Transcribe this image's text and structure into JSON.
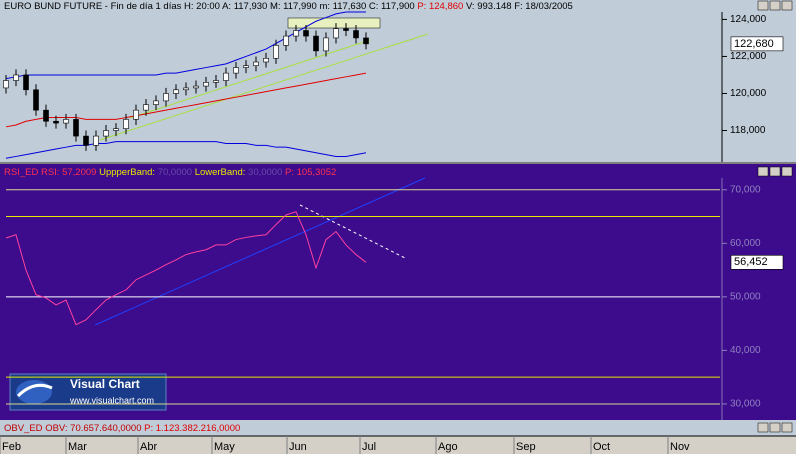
{
  "chart_data": [
    {
      "type": "candlestick",
      "title": "EURO BUND FUTURE - Fin de día 1 días",
      "info": [
        {
          "text": "H: 20:00",
          "color": "#000000"
        },
        {
          "text": "A: 117,930",
          "color": "#000000"
        },
        {
          "text": "M: 117,990",
          "color": "#000000"
        },
        {
          "text": "m: 117,630",
          "color": "#000000"
        },
        {
          "text": "C: 117,900",
          "color": "#000000"
        },
        {
          "text": "P: 124,860",
          "color": "#e00000"
        },
        {
          "text": "V: 993.148",
          "color": "#000000"
        },
        {
          "text": "F: 18/03/2005",
          "color": "#000000"
        }
      ],
      "open": [
        120.3,
        120.7,
        121.0,
        120.2,
        119.1,
        118.5,
        118.4,
        118.6,
        117.7,
        117.2,
        117.7,
        118.0,
        118.1,
        118.6,
        119.1,
        119.4,
        119.6,
        120.0,
        120.2,
        120.3,
        120.4,
        120.6,
        120.7,
        121.1,
        121.4,
        121.5,
        121.7,
        121.9,
        122.6,
        123.1,
        123.4,
        123.1,
        122.3,
        123.0,
        123.5,
        123.4,
        123.0
      ],
      "high": [
        121.0,
        121.3,
        121.3,
        120.5,
        119.4,
        118.8,
        118.9,
        118.9,
        118.0,
        118.0,
        118.3,
        118.4,
        118.9,
        119.4,
        119.7,
        119.9,
        120.3,
        120.5,
        120.6,
        120.7,
        120.9,
        121.0,
        121.4,
        121.7,
        121.8,
        122.0,
        122.2,
        122.9,
        123.4,
        123.7,
        123.7,
        123.4,
        123.3,
        123.8,
        123.8,
        123.7,
        123.3
      ],
      "low": [
        120.0,
        120.4,
        119.9,
        118.8,
        118.2,
        118.1,
        118.1,
        117.4,
        116.9,
        116.9,
        117.4,
        117.7,
        117.8,
        118.3,
        118.8,
        119.1,
        119.3,
        119.7,
        119.9,
        120.0,
        120.1,
        120.3,
        120.4,
        120.8,
        121.1,
        121.2,
        121.4,
        121.6,
        122.3,
        122.8,
        122.8,
        122.0,
        122.0,
        122.7,
        123.1,
        122.7,
        122.38
      ],
      "close": [
        120.7,
        121.0,
        120.2,
        119.1,
        118.5,
        118.4,
        118.6,
        117.7,
        117.2,
        117.7,
        118.0,
        118.1,
        118.6,
        119.1,
        119.4,
        119.6,
        120.0,
        120.2,
        120.3,
        120.4,
        120.6,
        120.7,
        121.1,
        121.4,
        121.5,
        121.7,
        121.9,
        122.6,
        123.1,
        123.4,
        123.1,
        122.3,
        123.0,
        123.5,
        123.4,
        123.0,
        122.68
      ],
      "series": [
        {
          "color": "#0000e0",
          "values": [
            120.8,
            120.9,
            121.0,
            121.0,
            121.0,
            121.0,
            121.0,
            121.0,
            121.0,
            121.0,
            121.0,
            121.0,
            121.0,
            121.0,
            121.0,
            121.0,
            121.1,
            121.1,
            121.2,
            121.3,
            121.4,
            121.5,
            121.6,
            121.8,
            122.0,
            122.2,
            122.4,
            122.7,
            123.0,
            123.3,
            123.6,
            123.9,
            124.1,
            124.3,
            124.4,
            124.4,
            124.4
          ]
        },
        {
          "color": "#0000e0",
          "values": [
            116.5,
            116.6,
            116.7,
            116.8,
            116.9,
            117.0,
            117.1,
            117.2,
            117.2,
            117.3,
            117.3,
            117.4,
            117.4,
            117.4,
            117.4,
            117.4,
            117.4,
            117.4,
            117.4,
            117.4,
            117.4,
            117.4,
            117.3,
            117.3,
            117.3,
            117.2,
            117.2,
            117.1,
            117.1,
            117.0,
            116.9,
            116.8,
            116.7,
            116.6,
            116.6,
            116.7,
            116.8
          ]
        },
        {
          "color": "#e00000",
          "values": [
            118.2,
            118.3,
            118.5,
            118.6,
            118.7,
            118.7,
            118.7,
            118.7,
            118.6,
            118.6,
            118.6,
            118.6,
            118.7,
            118.8,
            118.9,
            119.0,
            119.1,
            119.2,
            119.3,
            119.4,
            119.5,
            119.6,
            119.7,
            119.8,
            119.9,
            120.0,
            120.1,
            120.2,
            120.3,
            120.4,
            120.5,
            120.6,
            120.7,
            120.8,
            120.9,
            121.0,
            121.1
          ]
        }
      ],
      "ylim": [
        116.3,
        124.4
      ],
      "yticks": [
        {
          "value": 124,
          "label": "124,000"
        },
        {
          "value": 122,
          "label": "122,000"
        },
        {
          "value": 120,
          "label": "120,000"
        },
        {
          "value": 118,
          "label": "118,000"
        }
      ],
      "last": {
        "value": 122.68,
        "label": "122,680"
      }
    },
    {
      "type": "line",
      "title": "RSI_ED",
      "info": [
        {
          "text": "RSI: 57,2009",
          "color": "#ff3050"
        },
        {
          "text": "UppperBand:",
          "color": "#e8e800"
        },
        {
          "text": "70,0000",
          "color": "#6a4aa8"
        },
        {
          "text": "LowerBand:",
          "color": "#e8e800"
        },
        {
          "text": "30,0000",
          "color": "#6a4aa8"
        },
        {
          "text": "P: 105,3052",
          "color": "#ff3050"
        }
      ],
      "series": [
        {
          "color": "#ff40a0",
          "values": [
            61,
            61.6,
            55,
            50.4,
            49.8,
            48.5,
            49.4,
            44.8,
            45.7,
            47.6,
            49.4,
            50.4,
            51.3,
            53.2,
            54.1,
            55,
            56,
            56.9,
            57.9,
            58.4,
            58.8,
            59.7,
            59.7,
            60.7,
            61.1,
            61.4,
            61.6,
            63.5,
            65.3,
            65.9,
            61.6,
            55.4,
            60.7,
            62.2,
            59.7,
            57.9,
            56.452
          ]
        }
      ],
      "levels": [
        {
          "value": 70,
          "color": "#d8d890"
        },
        {
          "value": 65,
          "color": "#e8e800"
        },
        {
          "value": 50,
          "color": "#ffffff"
        },
        {
          "value": 35,
          "color": "#e8e800"
        },
        {
          "value": 30,
          "color": "#d8d890"
        }
      ],
      "ylim": [
        27,
        72.2
      ],
      "yticks": [
        {
          "value": 70,
          "label": "70,000"
        },
        {
          "value": 60,
          "label": "60,000"
        },
        {
          "value": 50,
          "label": "50,000"
        },
        {
          "value": 40,
          "label": "40,000"
        },
        {
          "value": 30,
          "label": "30,000"
        }
      ],
      "last": {
        "value": 56.452,
        "label": "56,452"
      }
    },
    {
      "type": "indicator-header",
      "title": "OBV_ED",
      "info": [
        {
          "text": "OBV: 70.657.640,0000",
          "color": "#c00000"
        },
        {
          "text": "P: 1.123.382.216,0000",
          "color": "#e00000"
        }
      ]
    }
  ],
  "time_axis": {
    "categories": [
      "Feb",
      "Mar",
      "Abr",
      "May",
      "Jun",
      "Jul",
      "Ago",
      "Sep",
      "Oct",
      "Nov"
    ]
  },
  "logo": {
    "name": "Visual Chart",
    "url": "www.visualchart.com"
  }
}
